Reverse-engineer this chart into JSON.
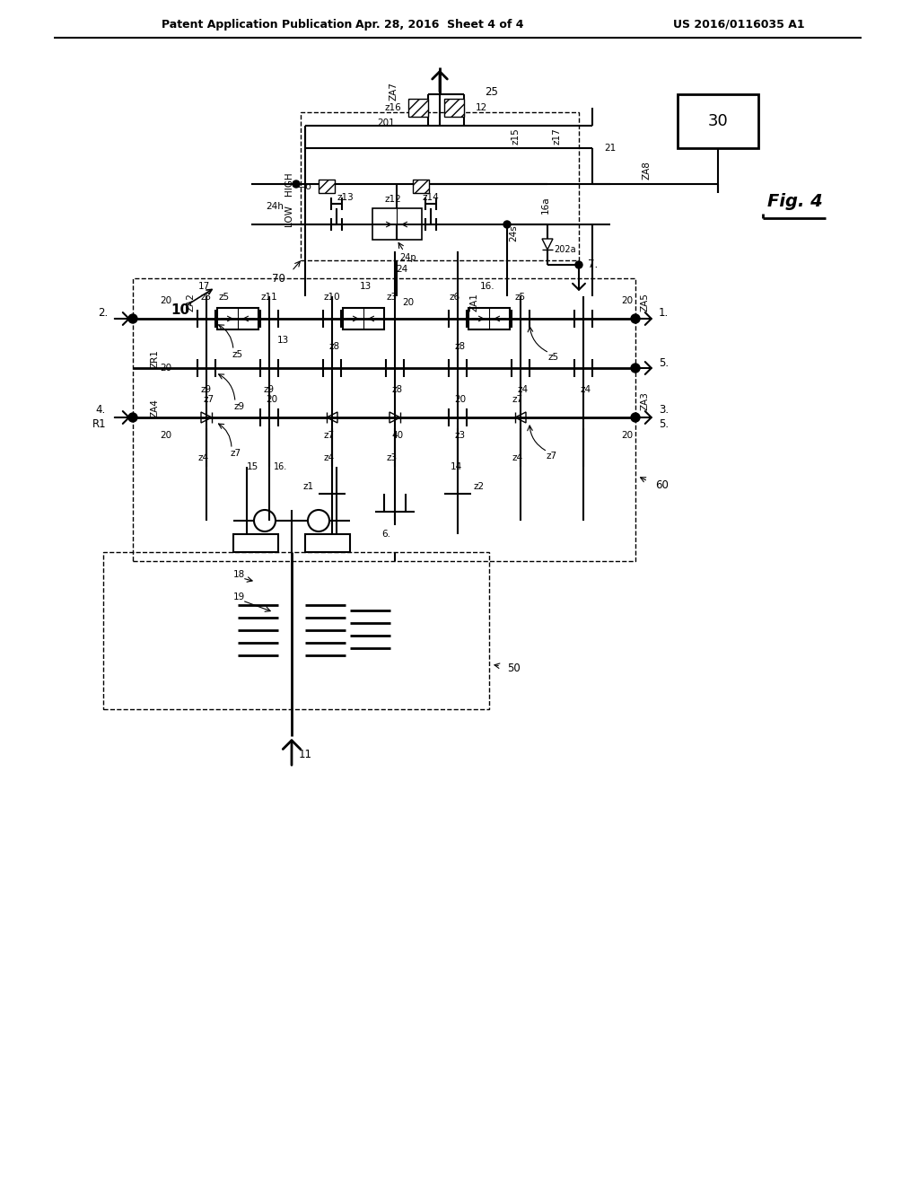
{
  "title_left": "Patent Application Publication",
  "title_center": "Apr. 28, 2016  Sheet 4 of 4",
  "title_right": "US 2016/0116035 A1",
  "background": "#ffffff"
}
